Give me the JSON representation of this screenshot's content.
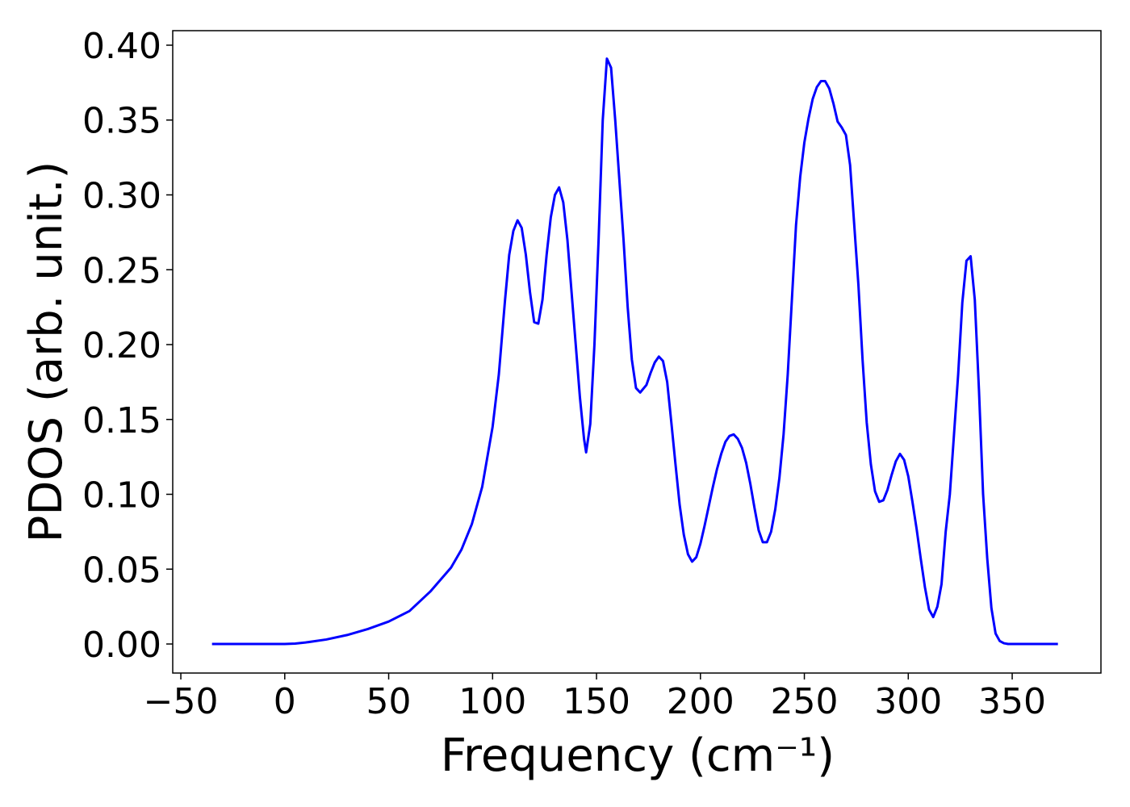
{
  "chart_data": {
    "type": "line",
    "xlabel": "Frequency (cm⁻¹)",
    "ylabel": "PDOS (arb. unit.)",
    "color": "#0000ff",
    "xlim": [
      -53.9,
      392.7
    ],
    "ylim": [
      -0.0194,
      0.4097
    ],
    "xticks": [
      {
        "value": -50,
        "label": "−50"
      },
      0,
      50,
      100,
      150,
      200,
      250,
      300,
      350
    ],
    "yticks": [
      {
        "value": 0,
        "label": "0.00"
      },
      {
        "value": 0.05,
        "label": "0.05"
      },
      {
        "value": 0.1,
        "label": "0.10"
      },
      {
        "value": 0.15,
        "label": "0.15"
      },
      {
        "value": 0.2,
        "label": "0.20"
      },
      {
        "value": 0.25,
        "label": "0.25"
      },
      {
        "value": 0.3,
        "label": "0.30"
      },
      {
        "value": 0.35,
        "label": "0.35"
      },
      {
        "value": 0.4,
        "label": "0.40"
      }
    ],
    "x": [
      -35,
      0,
      5,
      10,
      20,
      30,
      40,
      50,
      60,
      70,
      80,
      85,
      90,
      95,
      100,
      103,
      106,
      108,
      110,
      112,
      114,
      116,
      118,
      120,
      122,
      124,
      126,
      128,
      130,
      132,
      134,
      136,
      138,
      140,
      142,
      144,
      145,
      147,
      149,
      151,
      153,
      155,
      157,
      159,
      161,
      163,
      165,
      167,
      169,
      171,
      174,
      176,
      178,
      180,
      182,
      184,
      186,
      188,
      190,
      192,
      194,
      196,
      198,
      200,
      202,
      204,
      206,
      208,
      210,
      212,
      214,
      216,
      218,
      220,
      222,
      224,
      226,
      228,
      230,
      232,
      234,
      236,
      238,
      240,
      242,
      244,
      246,
      248,
      250,
      252,
      254,
      256,
      258,
      260,
      262,
      264,
      266,
      268,
      270,
      272,
      274,
      276,
      278,
      280,
      282,
      284,
      286,
      288,
      290,
      292,
      294,
      296,
      298,
      300,
      302,
      304,
      306,
      308,
      310,
      312,
      314,
      316,
      318,
      320,
      322,
      324,
      326,
      328,
      330,
      332,
      334,
      336,
      338,
      340,
      342,
      344,
      346,
      348,
      372
    ],
    "values": [
      0,
      0,
      0.0003,
      0.001,
      0.003,
      0.006,
      0.01,
      0.015,
      0.022,
      0.035,
      0.051,
      0.063,
      0.08,
      0.105,
      0.145,
      0.18,
      0.23,
      0.26,
      0.276,
      0.283,
      0.278,
      0.26,
      0.235,
      0.215,
      0.214,
      0.23,
      0.26,
      0.285,
      0.3,
      0.305,
      0.295,
      0.27,
      0.235,
      0.2,
      0.165,
      0.137,
      0.128,
      0.147,
      0.2,
      0.27,
      0.35,
      0.391,
      0.385,
      0.35,
      0.31,
      0.27,
      0.225,
      0.19,
      0.171,
      0.168,
      0.173,
      0.181,
      0.188,
      0.192,
      0.189,
      0.175,
      0.148,
      0.12,
      0.093,
      0.073,
      0.06,
      0.055,
      0.058,
      0.067,
      0.079,
      0.092,
      0.105,
      0.117,
      0.127,
      0.135,
      0.139,
      0.14,
      0.137,
      0.131,
      0.121,
      0.107,
      0.091,
      0.076,
      0.068,
      0.068,
      0.075,
      0.09,
      0.111,
      0.14,
      0.18,
      0.23,
      0.28,
      0.312,
      0.335,
      0.351,
      0.364,
      0.372,
      0.376,
      0.376,
      0.371,
      0.361,
      0.349,
      0.345,
      0.34,
      0.32,
      0.28,
      0.24,
      0.19,
      0.148,
      0.12,
      0.102,
      0.095,
      0.096,
      0.103,
      0.113,
      0.122,
      0.127,
      0.123,
      0.112,
      0.095,
      0.077,
      0.057,
      0.038,
      0.023,
      0.018,
      0.025,
      0.04,
      0.075,
      0.1,
      0.14,
      0.18,
      0.228,
      0.256,
      0.259,
      0.23,
      0.17,
      0.1,
      0.057,
      0.024,
      0.007,
      0.002,
      0.0005,
      0,
      0
    ]
  }
}
